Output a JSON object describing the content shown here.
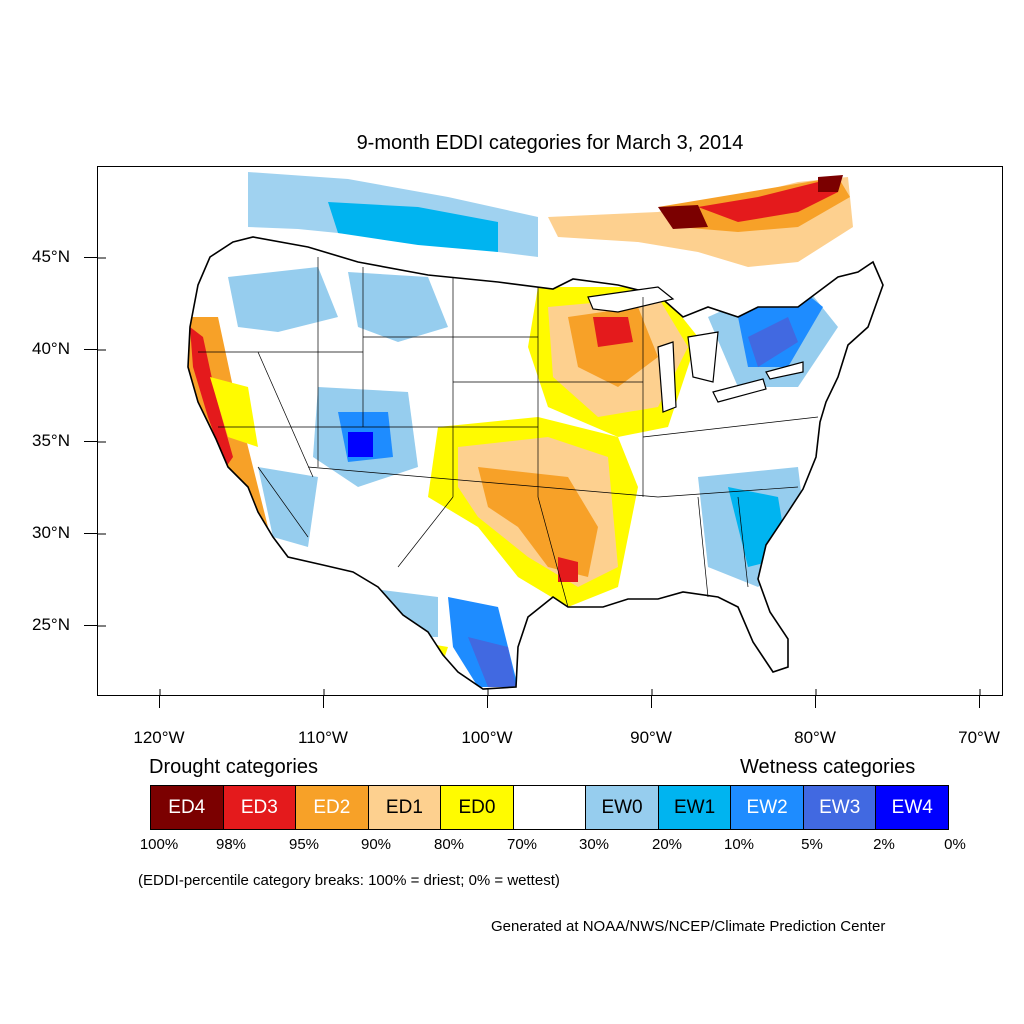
{
  "title": "9-month EDDI categories for March 3, 2014",
  "lat_labels": [
    "45°N",
    "40°N",
    "35°N",
    "30°N",
    "25°N"
  ],
  "lon_labels": [
    "120°W",
    "110°W",
    "100°W",
    "90°W",
    "80°W",
    "70°W"
  ],
  "legend": {
    "drought_heading": "Drought categories",
    "wetness_heading": "Wetness categories",
    "categories": [
      {
        "label": "ED4",
        "color": "#7b0000",
        "text_color": "#ffffff"
      },
      {
        "label": "ED3",
        "color": "#e41a1c",
        "text_color": "#ffffff"
      },
      {
        "label": "ED2",
        "color": "#f7a128",
        "text_color": "#ffffff"
      },
      {
        "label": "ED1",
        "color": "#fdd08f",
        "text_color": "#000000"
      },
      {
        "label": "ED0",
        "color": "#fffb00",
        "text_color": "#000000"
      },
      {
        "label": "",
        "color": "#ffffff",
        "text_color": "#000000"
      },
      {
        "label": "EW0",
        "color": "#96cdee",
        "text_color": "#000000"
      },
      {
        "label": "EW1",
        "color": "#00b4f0",
        "text_color": "#000000"
      },
      {
        "label": "EW2",
        "color": "#1e8cff",
        "text_color": "#ffffff"
      },
      {
        "label": "EW3",
        "color": "#4169e1",
        "text_color": "#ffffff"
      },
      {
        "label": "EW4",
        "color": "#0000ff",
        "text_color": "#ffffff"
      }
    ],
    "percentiles": [
      "100%",
      "98%",
      "95%",
      "90%",
      "80%",
      "70%",
      "30%",
      "20%",
      "10%",
      "5%",
      "2%",
      "0%"
    ]
  },
  "footnote": "(EDDI-percentile category breaks: 100% = driest; 0% = wettest)",
  "credit": "Generated at NOAA/NWS/NCEP/Climate Prediction Center"
}
